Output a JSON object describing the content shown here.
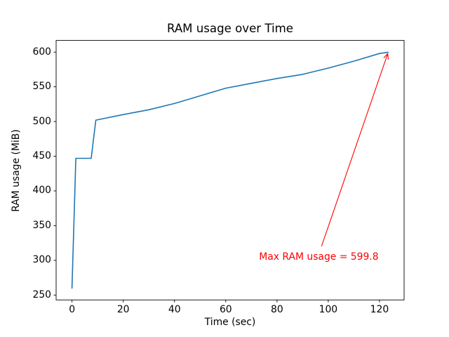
{
  "figure": {
    "title": "RAM usage over Time",
    "xlabel": "Time (sec)",
    "ylabel": "RAM usage (MiB)"
  },
  "chart_data": {
    "type": "line",
    "title": "RAM usage over Time",
    "xlabel": "Time (sec)",
    "ylabel": "RAM usage (MiB)",
    "x": [
      0,
      1.5,
      7.5,
      9.3,
      20,
      30,
      40,
      50,
      60,
      70,
      80,
      90,
      100,
      110,
      120,
      123.4
    ],
    "y": [
      260,
      447,
      447,
      502,
      510,
      517,
      526,
      537,
      548,
      555,
      562,
      568,
      577,
      587,
      598,
      599.8
    ],
    "xlim": [
      -6.2,
      129.6
    ],
    "ylim": [
      243.0,
      616.8
    ],
    "xticks": [
      0,
      20,
      40,
      60,
      80,
      100,
      120
    ],
    "yticks": [
      250,
      300,
      350,
      400,
      450,
      500,
      550,
      600
    ],
    "grid": false,
    "legend": null,
    "line_color": "#1f77b4",
    "axis_color": "#000000",
    "background_color": "#ffffff",
    "annotation": {
      "text": "Max RAM usage = 599.8",
      "xy": [
        123.4,
        599.8
      ],
      "xytext": [
        73,
        300
      ],
      "color": "#ff0000",
      "arrow_style": "->"
    }
  }
}
